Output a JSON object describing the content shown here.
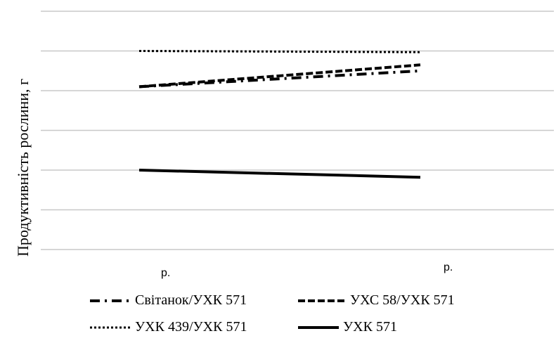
{
  "chart_data": {
    "type": "line",
    "title": "",
    "xlabel": "",
    "ylabel": "Продуктивність рослини, г",
    "categories": [
      "р.",
      "р."
    ],
    "ylim": [
      0,
      6
    ],
    "grid": true,
    "legend_position": "bottom",
    "series": [
      {
        "name": "Світанок/УХК 571",
        "values": [
          4.1,
          4.5
        ],
        "style": "dashdot",
        "color": "#000000"
      },
      {
        "name": "УХС 58/УХК 571",
        "values": [
          4.1,
          4.65
        ],
        "style": "dashed",
        "color": "#000000"
      },
      {
        "name": "УХК 439/УХК 571",
        "values": [
          5.0,
          4.97
        ],
        "style": "dotted",
        "color": "#000000"
      },
      {
        "name": "УХК 571",
        "values": [
          2.0,
          1.82
        ],
        "style": "solid",
        "color": "#000000"
      }
    ]
  }
}
